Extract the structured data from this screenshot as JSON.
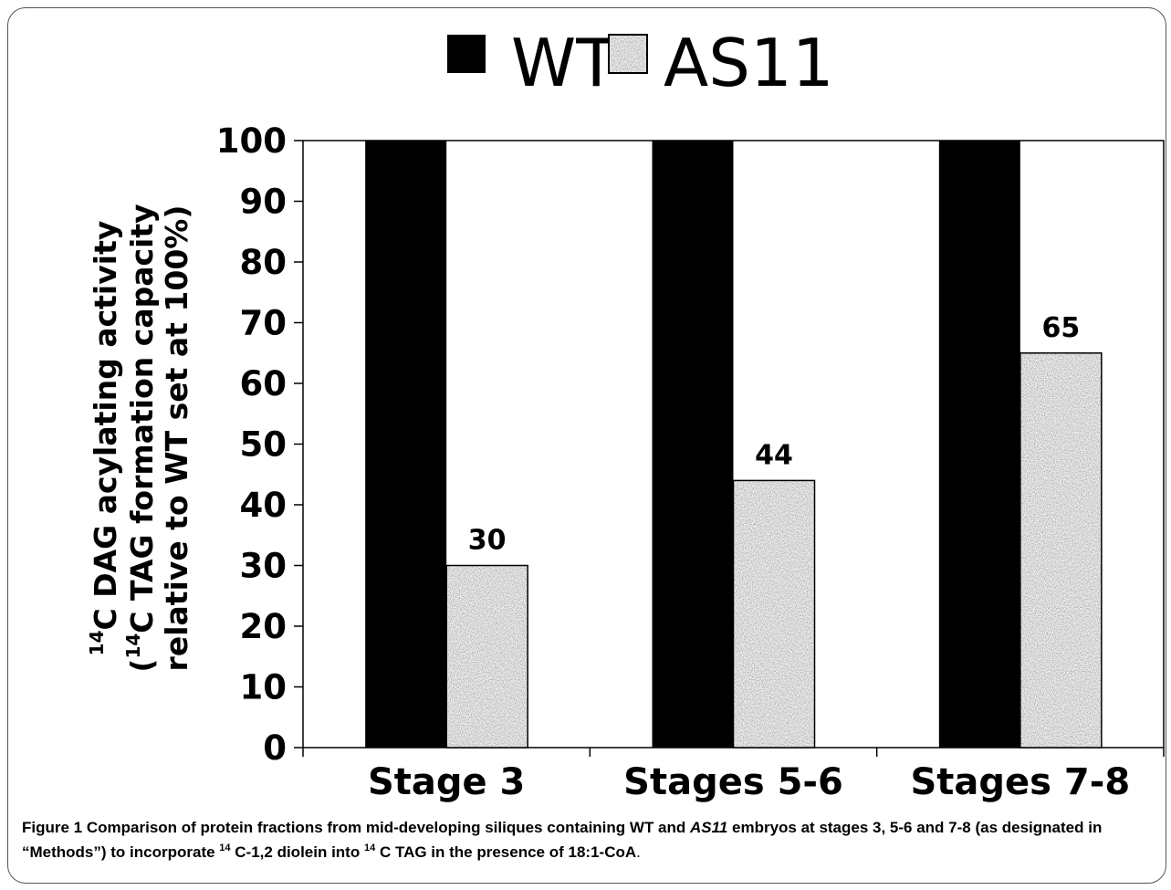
{
  "chart_data": {
    "type": "bar",
    "categories": [
      "Stage 3",
      "Stages 5-6",
      "Stages 7-8"
    ],
    "series": [
      {
        "name": "WT",
        "values": [
          100,
          100,
          100
        ],
        "color": "#000000"
      },
      {
        "name": "AS11",
        "values": [
          30,
          44,
          65
        ],
        "color": "#b3b3b3",
        "pattern": "speckled-grey"
      }
    ],
    "data_labels": [
      "30",
      "44",
      "65"
    ],
    "ylim": [
      0,
      100
    ],
    "yticks": [
      "0",
      "10",
      "20",
      "30",
      "40",
      "50",
      "60",
      "70",
      "80",
      "90",
      "100"
    ],
    "ylabel": {
      "line1_sup": "14",
      "line1": "C DAG acylating activity",
      "line2_open": "(",
      "line2_sup": "14",
      "line2": "C TAG formation capacity",
      "line3": "relative  to WT set at 100%)"
    },
    "legend": {
      "position": "top-center",
      "items": [
        "WT",
        "AS11"
      ]
    },
    "grid": false
  },
  "caption": {
    "label": "Figure 1",
    "part1": "Comparison of protein fractions from mid-developing siliques containing WT and",
    "italic1": "AS11",
    "part2": "embryos at stages 3, 5-6 and 7-8 (as designated in “Methods”) to incorporate",
    "sup1": "14",
    "part3": "C-1,2 diolein into",
    "sup2": "14",
    "part4": "C TAG in the presence of 18:1-CoA",
    "end": "."
  }
}
